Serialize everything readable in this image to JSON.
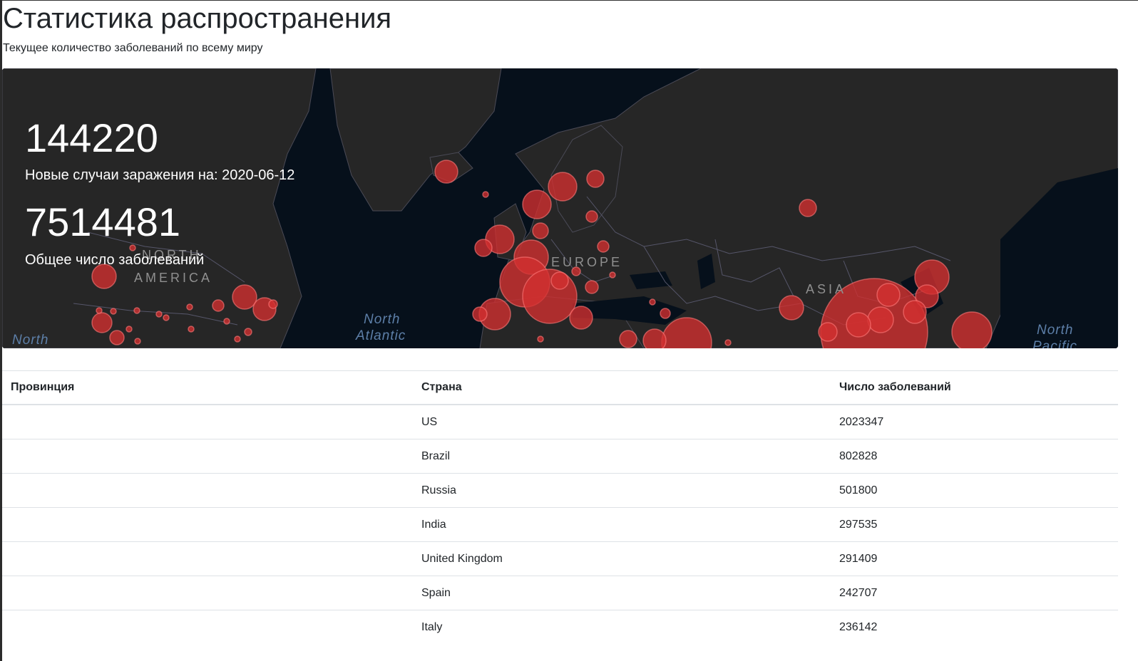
{
  "page": {
    "title": "Статистика распространения",
    "subtitle": "Текущее количество заболеваний по всему миру"
  },
  "stats": {
    "new_cases": "144220",
    "new_cases_label": "Новые случаи заражения на: 2020-06-12",
    "total_cases": "7514481",
    "total_cases_label": "Общее число заболеваний"
  },
  "map": {
    "labels": {
      "north_america_1": "NORTH",
      "north_america_2": "AMERICA",
      "europe": "EUROPE",
      "asia": "ASIA",
      "north_atlantic_1": "North",
      "north_atlantic_2": "Atlantic",
      "north_left": "North",
      "north_pacific_1": "North",
      "north_pacific_2": "Pacific"
    },
    "colors": {
      "background": "#06101b",
      "land": "#262626",
      "border": "#5a5a6a",
      "bubble": "#d32f2f"
    }
  },
  "table": {
    "headers": [
      "Провинция",
      "Страна",
      "Число заболеваний"
    ],
    "rows": [
      {
        "province": "",
        "country": "US",
        "cases": "2023347"
      },
      {
        "province": "",
        "country": "Brazil",
        "cases": "802828"
      },
      {
        "province": "",
        "country": "Russia",
        "cases": "501800"
      },
      {
        "province": "",
        "country": "India",
        "cases": "297535"
      },
      {
        "province": "",
        "country": "United Kingdom",
        "cases": "291409"
      },
      {
        "province": "",
        "country": "Spain",
        "cases": "242707"
      },
      {
        "province": "",
        "country": "Italy",
        "cases": "236142"
      }
    ]
  }
}
